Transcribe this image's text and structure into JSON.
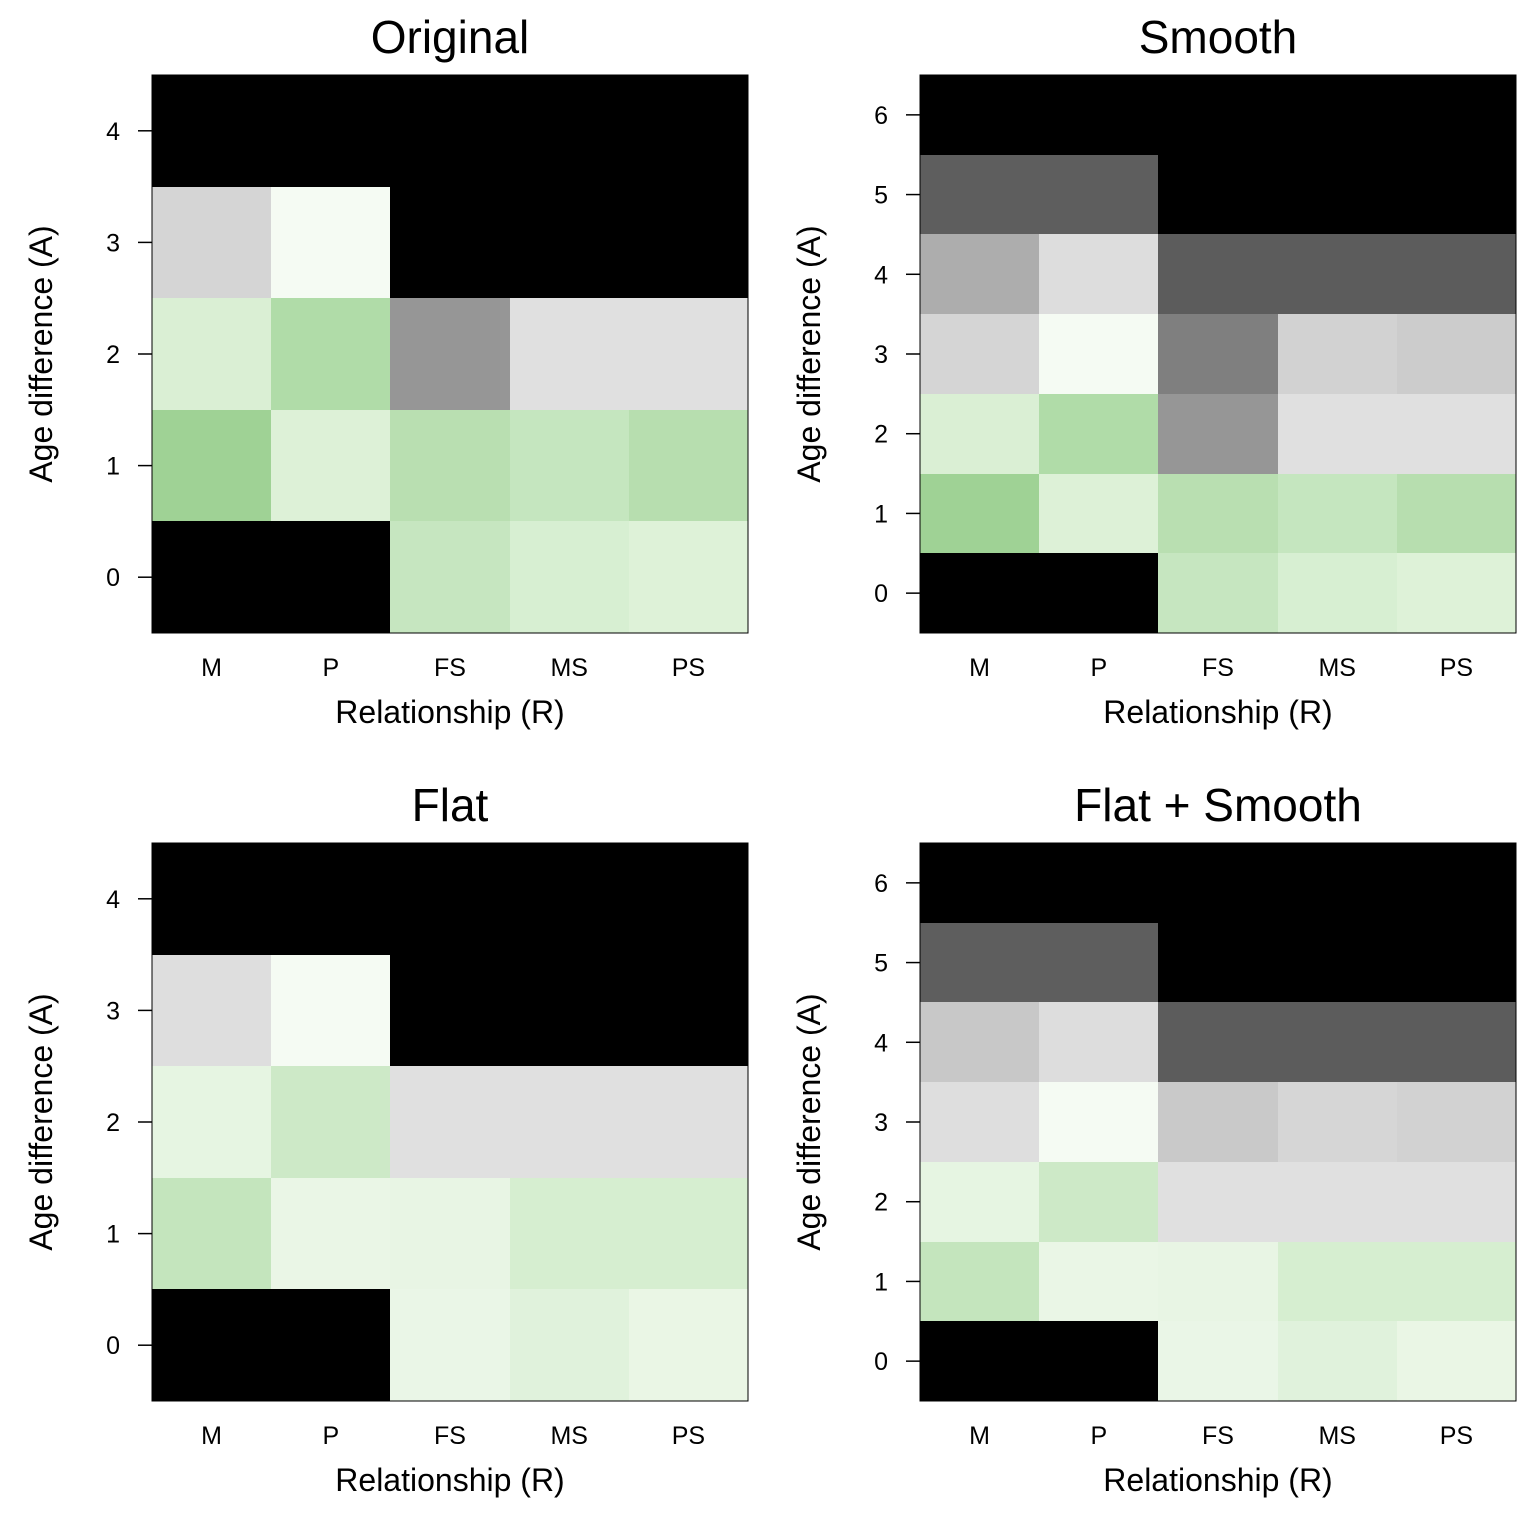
{
  "chart_data": [
    {
      "type": "heatmap",
      "title": "Original",
      "xlabel": "Relationship (R)",
      "ylabel": "Age difference (A)",
      "x_categories": [
        "M",
        "P",
        "FS",
        "MS",
        "PS"
      ],
      "y_categories": [
        "0",
        "1",
        "2",
        "3",
        "4"
      ],
      "cells": [
        [
          "#000000",
          "#000000",
          "#c6e6c0",
          "#d7efd2",
          "#def2d8"
        ],
        [
          "#9fd295",
          "#ddf1d7",
          "#b9dfb1",
          "#c5e6bf",
          "#b7deaf"
        ],
        [
          "#daefd4",
          "#b0dca8",
          "#969696",
          "#e0e0e0",
          "#e0e0e0"
        ],
        [
          "#d5d5d5",
          "#f5fbf3",
          "#000000",
          "#000000",
          "#000000"
        ],
        [
          "#000000",
          "#000000",
          "#000000",
          "#000000",
          "#000000"
        ]
      ]
    },
    {
      "type": "heatmap",
      "title": "Smooth",
      "xlabel": "Relationship (R)",
      "ylabel": "Age difference (A)",
      "x_categories": [
        "M",
        "P",
        "FS",
        "MS",
        "PS"
      ],
      "y_categories": [
        "0",
        "1",
        "2",
        "3",
        "4",
        "5",
        "6"
      ],
      "cells": [
        [
          "#000000",
          "#000000",
          "#c6e6c0",
          "#d7efd2",
          "#def2d8"
        ],
        [
          "#9fd295",
          "#ddf1d7",
          "#b9dfb1",
          "#c5e6bf",
          "#b7deaf"
        ],
        [
          "#daefd4",
          "#b0dca8",
          "#969696",
          "#e0e0e0",
          "#e0e0e0"
        ],
        [
          "#d5d5d5",
          "#f5fbf3",
          "#7f7f7f",
          "#d2d2d2",
          "#cccccc"
        ],
        [
          "#adadad",
          "#dddddd",
          "#5c5c5c",
          "#5c5c5c",
          "#5c5c5c"
        ],
        [
          "#5e5e5e",
          "#5e5e5e",
          "#000000",
          "#000000",
          "#000000"
        ],
        [
          "#000000",
          "#000000",
          "#000000",
          "#000000",
          "#000000"
        ]
      ]
    },
    {
      "type": "heatmap",
      "title": "Flat",
      "xlabel": "Relationship (R)",
      "ylabel": "Age difference (A)",
      "x_categories": [
        "M",
        "P",
        "FS",
        "MS",
        "PS"
      ],
      "y_categories": [
        "0",
        "1",
        "2",
        "3",
        "4"
      ],
      "cells": [
        [
          "#000000",
          "#000000",
          "#eaf6e7",
          "#e0f2dc",
          "#eaf6e5"
        ],
        [
          "#c4e5bd",
          "#eaf6e6",
          "#e8f5e4",
          "#d6eed0",
          "#d6eed0"
        ],
        [
          "#e6f5e2",
          "#cde9c7",
          "#e0e0e0",
          "#e0e0e0",
          "#e0e0e0"
        ],
        [
          "#dedede",
          "#f5fbf3",
          "#000000",
          "#000000",
          "#000000"
        ],
        [
          "#000000",
          "#000000",
          "#000000",
          "#000000",
          "#000000"
        ]
      ]
    },
    {
      "type": "heatmap",
      "title": "Flat + Smooth",
      "xlabel": "Relationship (R)",
      "ylabel": "Age difference (A)",
      "x_categories": [
        "M",
        "P",
        "FS",
        "MS",
        "PS"
      ],
      "y_categories": [
        "0",
        "1",
        "2",
        "3",
        "4",
        "5",
        "6"
      ],
      "cells": [
        [
          "#000000",
          "#000000",
          "#eaf6e7",
          "#e0f2dc",
          "#eaf6e5"
        ],
        [
          "#c4e5bd",
          "#eaf6e6",
          "#e8f5e4",
          "#d6eed0",
          "#d6eed0"
        ],
        [
          "#e6f5e2",
          "#cde9c7",
          "#e0e0e0",
          "#e0e0e0",
          "#e0e0e0"
        ],
        [
          "#dedede",
          "#f5fbf3",
          "#c9c9c9",
          "#d6d6d6",
          "#d2d2d2"
        ],
        [
          "#c8c8c8",
          "#dddddd",
          "#5c5c5c",
          "#5c5c5c",
          "#5c5c5c"
        ],
        [
          "#5e5e5e",
          "#5e5e5e",
          "#000000",
          "#000000",
          "#000000"
        ],
        [
          "#000000",
          "#000000",
          "#000000",
          "#000000",
          "#000000"
        ]
      ]
    }
  ]
}
